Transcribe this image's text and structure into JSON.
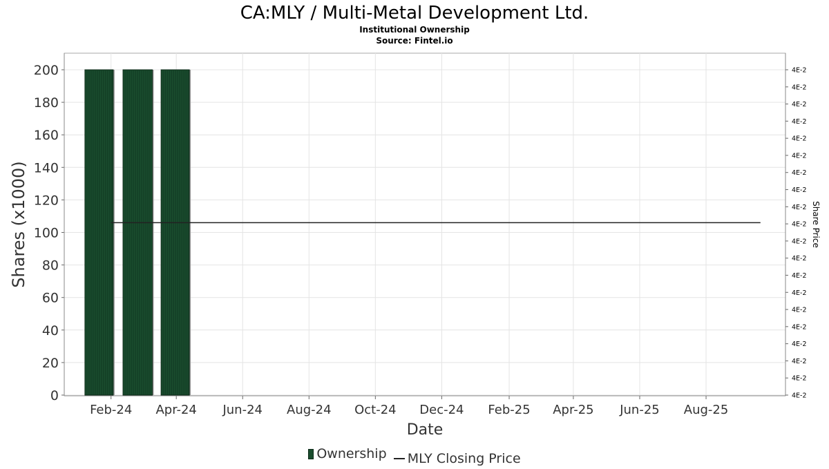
{
  "chart_data": {
    "type": "bar",
    "title": "CA:MLY / Multi-Metal Development Ltd.",
    "subtitle": "Institutional Ownership",
    "source": "Source: Fintel.io",
    "xlabel": "Date",
    "ylabel": "Shares (x1000)",
    "y2label": "Share Price",
    "ylim": [
      0,
      210
    ],
    "yticks": [
      0,
      20,
      40,
      60,
      80,
      100,
      120,
      140,
      160,
      180,
      200
    ],
    "y2ticks": [
      "4E-2",
      "4E-2",
      "4E-2",
      "4E-2",
      "4E-2",
      "4E-2",
      "4E-2",
      "4E-2",
      "4E-2",
      "4E-2",
      "4E-2",
      "4E-2",
      "4E-2",
      "4E-2",
      "4E-2",
      "4E-2",
      "4E-2",
      "4E-2",
      "4E-2",
      "4E-2"
    ],
    "xlim": [
      "2023-12-20",
      "2025-10-13"
    ],
    "xticks": [
      {
        "date": "2024-02-01",
        "label": "Feb-24"
      },
      {
        "date": "2024-04-01",
        "label": "Apr-24"
      },
      {
        "date": "2024-06-01",
        "label": "Jun-24"
      },
      {
        "date": "2024-08-01",
        "label": "Aug-24"
      },
      {
        "date": "2024-10-01",
        "label": "Oct-24"
      },
      {
        "date": "2024-12-01",
        "label": "Dec-24"
      },
      {
        "date": "2025-02-01",
        "label": "Feb-25"
      },
      {
        "date": "2025-04-01",
        "label": "Apr-25"
      },
      {
        "date": "2025-06-01",
        "label": "Jun-25"
      },
      {
        "date": "2025-08-01",
        "label": "Aug-25"
      }
    ],
    "grid": true,
    "legend_position": "bottom-center",
    "series": [
      {
        "name": "Ownership",
        "type": "bar",
        "color": "#1a4d2e",
        "bars": [
          {
            "start": "2024-01-08",
            "end": "2024-02-03",
            "value": 200
          },
          {
            "start": "2024-02-12",
            "end": "2024-03-10",
            "value": 200
          },
          {
            "start": "2024-03-18",
            "end": "2024-04-13",
            "value": 200
          }
        ]
      },
      {
        "name": "MLY Closing Price",
        "type": "line",
        "color": "#222222",
        "x": [
          "2024-02-01",
          "2025-09-20"
        ],
        "y": [
          0.04,
          0.04
        ]
      }
    ]
  }
}
